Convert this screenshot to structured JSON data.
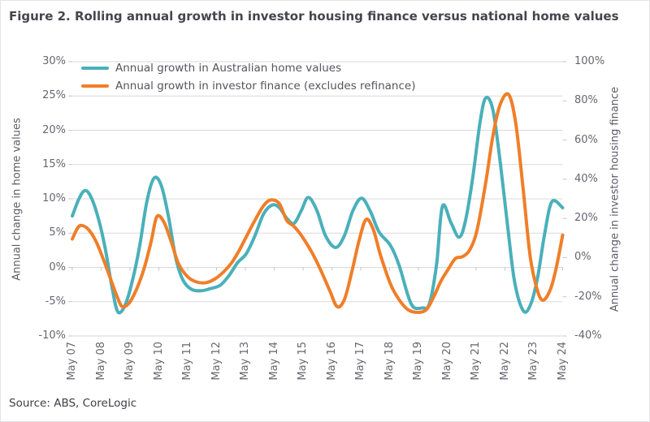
{
  "chart_data": {
    "type": "line",
    "title": "Figure 2. Rolling annual growth in investor housing finance versus national home values",
    "source": "Source: ABS, CoreLogic",
    "legend_position": "top-left-inside",
    "grid": true,
    "colors": {
      "gridline": "#d9d9d9",
      "tick_mark": "#c6c6cb",
      "label_text": "#66666f",
      "title_text": "#45454e"
    },
    "x_range": [
      2007.37,
      2024.37
    ],
    "x_labels": [
      "May 07",
      "May 08",
      "May 09",
      "May 10",
      "May 11",
      "May 12",
      "May 13",
      "May 14",
      "May 15",
      "May 16",
      "May 17",
      "May 18",
      "May 19",
      "May 20",
      "May 21",
      "May 22",
      "May 23",
      "May 24"
    ],
    "left_axis": {
      "label": "Annual change in home values",
      "min": -10,
      "max": 30,
      "step": 5,
      "ticks": [
        "30%",
        "25%",
        "20%",
        "15%",
        "10%",
        "5%",
        "0%",
        "-5%",
        "-10%"
      ]
    },
    "right_axis": {
      "label": "Annual change in investor housing finance",
      "min": -40,
      "max": 100,
      "step": 20,
      "ticks": [
        "100%",
        "80%",
        "60%",
        "40%",
        "20%",
        "0%",
        "-20%",
        "-40%"
      ]
    },
    "series": [
      {
        "name": "Annual growth in Australian home values",
        "color": "#4ab0ba",
        "axis": "left",
        "points": [
          [
            2007.37,
            7.5
          ],
          [
            2007.6,
            10.0
          ],
          [
            2007.8,
            11.2
          ],
          [
            2008.0,
            10.4
          ],
          [
            2008.25,
            7.5
          ],
          [
            2008.5,
            3.0
          ],
          [
            2008.75,
            -3.0
          ],
          [
            2008.95,
            -6.5
          ],
          [
            2009.2,
            -5.5
          ],
          [
            2009.45,
            -2.0
          ],
          [
            2009.7,
            3.0
          ],
          [
            2009.95,
            9.5
          ],
          [
            2010.2,
            13.0
          ],
          [
            2010.45,
            12.0
          ],
          [
            2010.7,
            7.5
          ],
          [
            2010.95,
            1.5
          ],
          [
            2011.2,
            -1.8
          ],
          [
            2011.5,
            -3.2
          ],
          [
            2011.85,
            -3.4
          ],
          [
            2012.15,
            -3.1
          ],
          [
            2012.5,
            -2.6
          ],
          [
            2012.8,
            -1.2
          ],
          [
            2013.1,
            0.7
          ],
          [
            2013.4,
            2.0
          ],
          [
            2013.7,
            4.6
          ],
          [
            2014.0,
            7.8
          ],
          [
            2014.3,
            9.1
          ],
          [
            2014.55,
            8.7
          ],
          [
            2014.8,
            7.2
          ],
          [
            2015.05,
            6.4
          ],
          [
            2015.3,
            8.2
          ],
          [
            2015.55,
            10.2
          ],
          [
            2015.85,
            8.3
          ],
          [
            2016.15,
            4.6
          ],
          [
            2016.5,
            2.9
          ],
          [
            2016.8,
            4.6
          ],
          [
            2017.1,
            8.3
          ],
          [
            2017.4,
            10.1
          ],
          [
            2017.7,
            8.2
          ],
          [
            2018.0,
            5.2
          ],
          [
            2018.4,
            3.2
          ],
          [
            2018.7,
            0.3
          ],
          [
            2019.0,
            -4.0
          ],
          [
            2019.2,
            -5.8
          ],
          [
            2019.5,
            -5.9
          ],
          [
            2019.75,
            -5.3
          ],
          [
            2020.0,
            0.5
          ],
          [
            2020.2,
            8.9
          ],
          [
            2020.5,
            6.5
          ],
          [
            2020.78,
            4.4
          ],
          [
            2021.0,
            6.8
          ],
          [
            2021.25,
            13.0
          ],
          [
            2021.5,
            21.0
          ],
          [
            2021.7,
            24.7
          ],
          [
            2021.95,
            23.0
          ],
          [
            2022.2,
            15.5
          ],
          [
            2022.45,
            6.5
          ],
          [
            2022.7,
            -2.0
          ],
          [
            2023.0,
            -6.3
          ],
          [
            2023.25,
            -5.5
          ],
          [
            2023.5,
            -1.5
          ],
          [
            2023.75,
            5.0
          ],
          [
            2024.0,
            9.6
          ],
          [
            2024.37,
            8.7
          ]
        ]
      },
      {
        "name": "Annual growth in investor finance (excludes refinance)",
        "color": "#f07e28",
        "axis": "right",
        "points": [
          [
            2007.37,
            9.5
          ],
          [
            2007.55,
            15.0
          ],
          [
            2007.7,
            16.4
          ],
          [
            2007.95,
            14.0
          ],
          [
            2008.2,
            8.0
          ],
          [
            2008.45,
            -1.0
          ],
          [
            2008.7,
            -11.0
          ],
          [
            2008.9,
            -19.0
          ],
          [
            2009.1,
            -25.0
          ],
          [
            2009.35,
            -23.0
          ],
          [
            2009.6,
            -16.0
          ],
          [
            2009.85,
            -6.0
          ],
          [
            2010.1,
            8.0
          ],
          [
            2010.3,
            20.9
          ],
          [
            2010.55,
            18.0
          ],
          [
            2010.8,
            8.0
          ],
          [
            2011.05,
            -3.0
          ],
          [
            2011.35,
            -9.5
          ],
          [
            2011.65,
            -12.3
          ],
          [
            2012.0,
            -12.8
          ],
          [
            2012.3,
            -11.0
          ],
          [
            2012.6,
            -7.5
          ],
          [
            2012.9,
            -2.5
          ],
          [
            2013.15,
            3.5
          ],
          [
            2013.4,
            10.6
          ],
          [
            2013.7,
            19.0
          ],
          [
            2014.0,
            26.5
          ],
          [
            2014.25,
            29.4
          ],
          [
            2014.55,
            27.5
          ],
          [
            2014.8,
            19.0
          ],
          [
            2015.05,
            16.0
          ],
          [
            2015.35,
            10.5
          ],
          [
            2015.7,
            2.0
          ],
          [
            2016.0,
            -7.0
          ],
          [
            2016.3,
            -17.0
          ],
          [
            2016.55,
            -25.0
          ],
          [
            2016.8,
            -21.5
          ],
          [
            2017.05,
            -8.0
          ],
          [
            2017.3,
            8.0
          ],
          [
            2017.55,
            19.4
          ],
          [
            2017.8,
            14.5
          ],
          [
            2018.05,
            1.5
          ],
          [
            2018.4,
            -13.5
          ],
          [
            2018.7,
            -21.5
          ],
          [
            2019.0,
            -26.5
          ],
          [
            2019.35,
            -28.0
          ],
          [
            2019.65,
            -26.5
          ],
          [
            2019.9,
            -20.0
          ],
          [
            2020.15,
            -12.0
          ],
          [
            2020.4,
            -6.0
          ],
          [
            2020.65,
            -0.5
          ],
          [
            2020.9,
            0.5
          ],
          [
            2021.15,
            4.0
          ],
          [
            2021.4,
            14.0
          ],
          [
            2021.7,
            38.0
          ],
          [
            2021.95,
            62.0
          ],
          [
            2022.2,
            78.0
          ],
          [
            2022.5,
            83.2
          ],
          [
            2022.75,
            68.0
          ],
          [
            2023.0,
            35.0
          ],
          [
            2023.25,
            0.0
          ],
          [
            2023.5,
            -17.0
          ],
          [
            2023.7,
            -21.7
          ],
          [
            2023.95,
            -16.0
          ],
          [
            2024.15,
            -5.0
          ],
          [
            2024.37,
            11.5
          ]
        ]
      }
    ]
  }
}
